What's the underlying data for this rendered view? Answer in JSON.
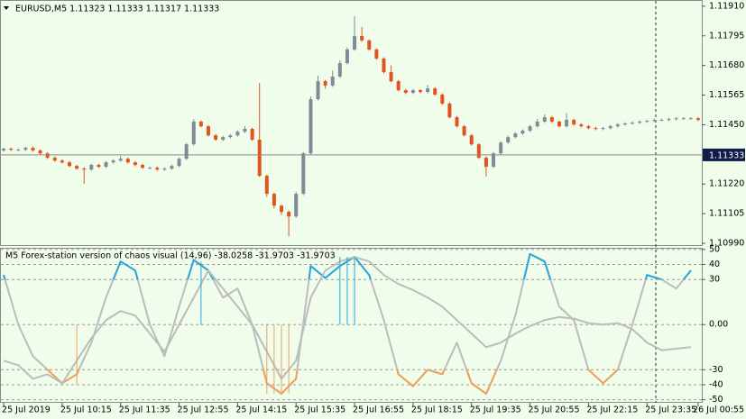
{
  "chart_data": [
    {
      "type": "candlestick",
      "title": "EURUSD,M5  1.11323 1.11333 1.11317 1.11333",
      "xlim": [
        -0.5,
        95.5
      ],
      "ylim": [
        1.10983,
        1.11927
      ],
      "yticks": [
        {
          "value": 1.1191,
          "label": "1.11910"
        },
        1.11795,
        {
          "value": 1.1168,
          "label": "1.11680"
        },
        1.11565,
        {
          "value": 1.1145,
          "label": "1.11450"
        },
        {
          "value": 1.1122,
          "label": "1.11220"
        },
        1.11105,
        {
          "value": 1.1099,
          "label": "1.10990"
        }
      ],
      "last_price": 1.11333,
      "up_color": "#7f8b96",
      "down_color": "#e2541f",
      "open": [
        1.1135,
        1.11357,
        1.11353,
        1.11353,
        1.1136,
        1.1135,
        1.11339,
        1.11322,
        1.11311,
        1.11304,
        1.1129,
        1.1128,
        1.11276,
        1.11294,
        1.11287,
        1.11304,
        1.11311,
        1.11318,
        1.11304,
        1.11294,
        1.11283,
        1.11283,
        1.11276,
        1.1128,
        1.1129,
        1.11318,
        1.11374,
        1.11462,
        1.11444,
        1.11409,
        1.11392,
        1.11402,
        1.11409,
        1.11423,
        1.11434,
        1.11392,
        1.11252,
        1.11182,
        1.11136,
        1.11112,
        1.11094,
        1.11182,
        1.11339,
        1.11549,
        1.11619,
        1.11602,
        1.11637,
        1.11689,
        1.11742,
        1.11794,
        1.11777,
        1.11742,
        1.11707,
        1.11654,
        1.11619,
        1.11584,
        1.11574,
        1.11584,
        1.11577,
        1.11591,
        1.11567,
        1.11532,
        1.11479,
        1.11444,
        1.11409,
        1.11374,
        1.11322,
        1.11287,
        1.11339,
        1.11381,
        1.11402,
        1.11416,
        1.11427,
        1.11444,
        1.11462,
        1.11479,
        1.11462,
        1.11444,
        1.11469,
        1.11451,
        1.11444,
        1.11437,
        1.11434,
        1.11437,
        1.11444,
        1.11451,
        1.11455,
        1.11458,
        1.11462,
        1.11465,
        1.11469,
        1.11469,
        1.11472,
        1.11475,
        1.11475,
        1.11475
      ],
      "high": [
        1.11362,
        1.11362,
        1.11358,
        1.11365,
        1.11365,
        1.11355,
        1.11344,
        1.11327,
        1.11316,
        1.11309,
        1.11295,
        1.11285,
        1.11299,
        1.11299,
        1.11309,
        1.11316,
        1.1133,
        1.11323,
        1.11309,
        1.11299,
        1.11288,
        1.11288,
        1.11285,
        1.11295,
        1.11323,
        1.11379,
        1.11472,
        1.11467,
        1.11449,
        1.11414,
        1.11407,
        1.11414,
        1.11428,
        1.11444,
        1.11439,
        1.11612,
        1.11257,
        1.11187,
        1.11141,
        1.11117,
        1.1119,
        1.11344,
        1.1156,
        1.1164,
        1.11624,
        1.1166,
        1.117,
        1.1175,
        1.11871,
        1.1183,
        1.11782,
        1.11747,
        1.11712,
        1.1168,
        1.11624,
        1.11589,
        1.11589,
        1.11589,
        1.11605,
        1.11596,
        1.11572,
        1.11537,
        1.11484,
        1.11449,
        1.11414,
        1.11379,
        1.11327,
        1.11344,
        1.11386,
        1.11407,
        1.11421,
        1.11432,
        1.11449,
        1.11472,
        1.1149,
        1.11484,
        1.11467,
        1.11495,
        1.11474,
        1.11456,
        1.11449,
        1.11442,
        1.11442,
        1.11449,
        1.11456,
        1.1146,
        1.11463,
        1.11467,
        1.1147,
        1.11474,
        1.11474,
        1.11477,
        1.1148,
        1.1148,
        1.1148,
        1.1148
      ],
      "low": [
        1.11345,
        1.11348,
        1.11348,
        1.11348,
        1.11345,
        1.11334,
        1.11317,
        1.11306,
        1.11299,
        1.11285,
        1.11275,
        1.1122,
        1.11271,
        1.11282,
        1.11282,
        1.11299,
        1.11306,
        1.11299,
        1.11289,
        1.11278,
        1.11278,
        1.11271,
        1.11271,
        1.11275,
        1.11285,
        1.11313,
        1.11369,
        1.11439,
        1.11404,
        1.11387,
        1.11387,
        1.11397,
        1.11404,
        1.11418,
        1.11387,
        1.11247,
        1.1117,
        1.11125,
        1.111,
        1.11017,
        1.11089,
        1.11177,
        1.11334,
        1.11544,
        1.1159,
        1.11597,
        1.11632,
        1.11684,
        1.11737,
        1.11772,
        1.11737,
        1.11702,
        1.11649,
        1.11614,
        1.11579,
        1.11569,
        1.11569,
        1.11572,
        1.11572,
        1.11562,
        1.11527,
        1.11474,
        1.11439,
        1.11404,
        1.11369,
        1.11317,
        1.1125,
        1.11282,
        1.11334,
        1.11376,
        1.11397,
        1.11411,
        1.11422,
        1.11439,
        1.11457,
        1.11457,
        1.11439,
        1.11439,
        1.11446,
        1.11439,
        1.11432,
        1.11429,
        1.11429,
        1.11432,
        1.11439,
        1.11446,
        1.1145,
        1.11453,
        1.11457,
        1.1146,
        1.11464,
        1.11464,
        1.11467,
        1.1147,
        1.1147,
        1.11464
      ],
      "close": [
        1.11357,
        1.11353,
        1.11353,
        1.1136,
        1.1135,
        1.11339,
        1.11322,
        1.11311,
        1.11304,
        1.1129,
        1.1128,
        1.11276,
        1.11294,
        1.11287,
        1.11304,
        1.11311,
        1.11318,
        1.11304,
        1.11294,
        1.11283,
        1.11283,
        1.11276,
        1.1128,
        1.1129,
        1.11318,
        1.11374,
        1.11462,
        1.11444,
        1.11409,
        1.11392,
        1.11402,
        1.11409,
        1.11423,
        1.11434,
        1.11392,
        1.11252,
        1.11182,
        1.11136,
        1.11112,
        1.11094,
        1.11182,
        1.11339,
        1.11549,
        1.11619,
        1.11602,
        1.11637,
        1.11689,
        1.11742,
        1.11794,
        1.11777,
        1.11742,
        1.11707,
        1.11654,
        1.11619,
        1.11584,
        1.11574,
        1.11584,
        1.11577,
        1.11591,
        1.11567,
        1.11532,
        1.11479,
        1.11444,
        1.11409,
        1.11374,
        1.11322,
        1.11287,
        1.11339,
        1.11381,
        1.11402,
        1.11416,
        1.11427,
        1.11444,
        1.11462,
        1.11479,
        1.11462,
        1.11444,
        1.11469,
        1.11451,
        1.11444,
        1.11437,
        1.11434,
        1.11437,
        1.11444,
        1.11451,
        1.11455,
        1.11458,
        1.11462,
        1.11465,
        1.11469,
        1.11469,
        1.11472,
        1.11475,
        1.11475,
        1.11475,
        1.11469
      ]
    },
    {
      "type": "line",
      "title": "M5 Forex-station version of chaos visual (14,96) -38.0258 -31.9703 -31.9703",
      "xlim": [
        -0.5,
        95.5
      ],
      "xticks": [
        {
          "value": 0,
          "label": "25 Jul 2019"
        },
        {
          "value": 8,
          "label": "25 Jul 10:15"
        },
        {
          "value": 16,
          "label": "25 Jul 11:35"
        },
        {
          "value": 24,
          "label": "25 Jul 12:55"
        },
        {
          "value": 32,
          "label": "25 Jul 14:15"
        },
        {
          "value": 40,
          "label": "25 Jul 15:35"
        },
        {
          "value": 48,
          "label": "25 Jul 16:55"
        },
        {
          "value": 56,
          "label": "25 Jul 18:15"
        },
        {
          "value": 64,
          "label": "25 Jul 19:35"
        },
        {
          "value": 72,
          "label": "25 Jul 20:55"
        },
        {
          "value": 80,
          "label": "25 Jul 22:15"
        },
        {
          "value": 88,
          "label": "25 Jul 23:35"
        },
        {
          "value": 95,
          "label": "26 Jul 00:55"
        }
      ],
      "ylim": [
        -52,
        50.5
      ],
      "yticks": [
        50,
        40,
        30,
        {
          "value": 0,
          "label": "0.00"
        },
        -30,
        -40,
        -50
      ],
      "grid": true,
      "x": [
        0,
        2,
        4,
        6,
        8,
        10,
        12,
        14,
        16,
        18,
        20,
        22,
        24,
        26,
        28,
        30,
        32,
        34,
        36,
        38,
        40,
        42,
        44,
        46,
        48,
        50,
        52,
        54,
        56,
        58,
        60,
        62,
        64,
        66,
        68,
        70,
        72,
        74,
        76,
        78,
        80,
        82,
        84,
        86,
        88,
        90,
        92,
        94
      ],
      "series": [
        {
          "color": "#bcbcbc",
          "highlight_above": {
            "level": 30,
            "color": "#27a7df"
          },
          "highlight_below": {
            "level": -30,
            "color": "#f0a05a"
          },
          "values": [
            33,
            0,
            -21,
            -30,
            -39,
            -33,
            -12,
            18,
            42,
            36,
            0,
            -21,
            12,
            43,
            36,
            18,
            24,
            0,
            -39,
            -46,
            -36,
            39,
            31,
            39,
            45,
            33,
            3,
            -33,
            -41,
            -30,
            -33,
            -12,
            -39,
            -46,
            -24,
            6,
            47,
            42,
            12,
            3,
            -30,
            -39,
            -30,
            0,
            33,
            30,
            24,
            36
          ]
        },
        {
          "color": "#bcbcbc",
          "values": [
            -24,
            -27,
            -36,
            -33,
            -39,
            -24,
            -9,
            3,
            9,
            6,
            -6,
            -18,
            0,
            18,
            36,
            24,
            12,
            0,
            -18,
            -36,
            -24,
            18,
            36,
            42,
            45,
            42,
            33,
            27,
            23,
            18,
            12,
            3,
            -6,
            -15,
            -12,
            -6,
            -1,
            3,
            5,
            4,
            1,
            0,
            1,
            -3,
            -12,
            -17,
            -16,
            -15
          ]
        },
        {
          "style": "bars",
          "color_above": "#27a7df",
          "color_below": "#f0a05a",
          "x": [
            10,
            27,
            36,
            37,
            38,
            39,
            46,
            47,
            48
          ],
          "values": [
            -40,
            42,
            -46,
            -46,
            -46,
            -46,
            45,
            45,
            45
          ]
        }
      ]
    }
  ]
}
